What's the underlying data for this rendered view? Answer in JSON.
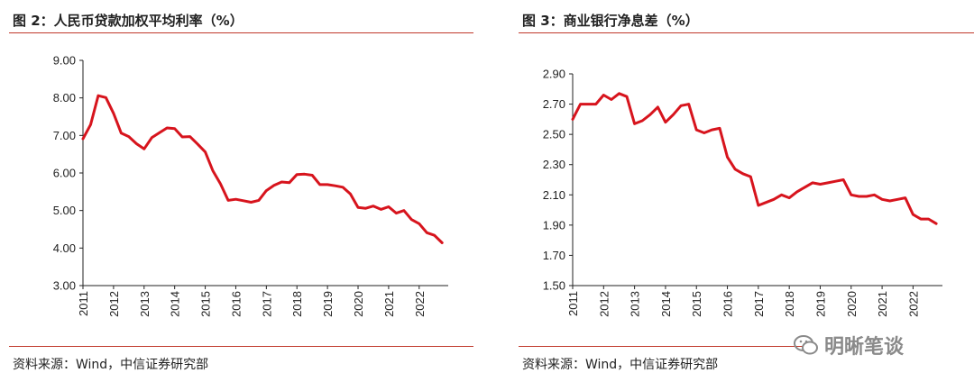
{
  "watermark": "明晰笔谈",
  "accent_color": "#d7141d",
  "chart_data": [
    {
      "type": "line",
      "title": "图 2：人民币贷款加权平均利率（%）",
      "source": "资料来源：Wind，中信证券研究部",
      "ylim": [
        3.0,
        9.0
      ],
      "yticks": [
        "9.00",
        "8.00",
        "7.00",
        "6.00",
        "5.00",
        "4.00",
        "3.00"
      ],
      "xticks": [
        "2011",
        "2012",
        "2013",
        "2014",
        "2015",
        "2016",
        "2017",
        "2018",
        "2019",
        "2020",
        "2021",
        "2022"
      ],
      "xlim": [
        2011.0,
        2022.95
      ],
      "grid": false,
      "x": [
        2011.0,
        2011.25,
        2011.5,
        2011.75,
        2012.0,
        2012.25,
        2012.5,
        2012.75,
        2013.0,
        2013.25,
        2013.5,
        2013.75,
        2014.0,
        2014.25,
        2014.5,
        2014.75,
        2015.0,
        2015.25,
        2015.5,
        2015.75,
        2016.0,
        2016.25,
        2016.5,
        2016.75,
        2017.0,
        2017.25,
        2017.5,
        2017.75,
        2018.0,
        2018.25,
        2018.5,
        2018.75,
        2019.0,
        2019.25,
        2019.5,
        2019.75,
        2020.0,
        2020.25,
        2020.5,
        2020.75,
        2021.0,
        2021.25,
        2021.5,
        2021.75,
        2022.0,
        2022.25,
        2022.5,
        2022.75
      ],
      "values": [
        6.91,
        7.29,
        8.06,
        8.01,
        7.59,
        7.06,
        6.97,
        6.78,
        6.64,
        6.94,
        7.07,
        7.2,
        7.18,
        6.96,
        6.97,
        6.77,
        6.56,
        6.06,
        5.71,
        5.27,
        5.3,
        5.26,
        5.22,
        5.27,
        5.53,
        5.67,
        5.76,
        5.74,
        5.96,
        5.97,
        5.94,
        5.69,
        5.69,
        5.66,
        5.62,
        5.44,
        5.08,
        5.06,
        5.12,
        5.03,
        5.1,
        4.93,
        5.0,
        4.76,
        4.65,
        4.41,
        4.34,
        4.14
      ]
    },
    {
      "type": "line",
      "title": "图 3：商业银行净息差（%）",
      "source": "资料来源：Wind，中信证券研究部",
      "ylim": [
        1.5,
        2.9
      ],
      "yticks": [
        "2.90",
        "2.70",
        "2.50",
        "2.30",
        "2.10",
        "1.90",
        "1.70",
        "1.50"
      ],
      "xticks": [
        "2011",
        "2012",
        "2013",
        "2014",
        "2015",
        "2016",
        "2017",
        "2018",
        "2019",
        "2020",
        "2021",
        "2022"
      ],
      "xlim": [
        2011.0,
        2022.95
      ],
      "grid": false,
      "x": [
        2011.0,
        2011.25,
        2011.5,
        2011.75,
        2012.0,
        2012.25,
        2012.5,
        2012.75,
        2013.0,
        2013.25,
        2013.5,
        2013.75,
        2014.0,
        2014.25,
        2014.5,
        2014.75,
        2015.0,
        2015.25,
        2015.5,
        2015.75,
        2016.0,
        2016.25,
        2016.5,
        2016.75,
        2017.0,
        2017.25,
        2017.5,
        2017.75,
        2018.0,
        2018.25,
        2018.5,
        2018.75,
        2019.0,
        2019.25,
        2019.5,
        2019.75,
        2020.0,
        2020.25,
        2020.5,
        2020.75,
        2021.0,
        2021.25,
        2021.5,
        2021.75,
        2022.0,
        2022.25,
        2022.5,
        2022.75
      ],
      "values": [
        2.6,
        2.7,
        2.7,
        2.7,
        2.76,
        2.73,
        2.77,
        2.75,
        2.57,
        2.59,
        2.63,
        2.68,
        2.58,
        2.63,
        2.69,
        2.7,
        2.53,
        2.51,
        2.53,
        2.54,
        2.35,
        2.27,
        2.24,
        2.22,
        2.03,
        2.05,
        2.07,
        2.1,
        2.08,
        2.12,
        2.15,
        2.18,
        2.17,
        2.18,
        2.19,
        2.2,
        2.1,
        2.09,
        2.09,
        2.1,
        2.07,
        2.06,
        2.07,
        2.08,
        1.97,
        1.94,
        1.94,
        1.91
      ]
    }
  ]
}
